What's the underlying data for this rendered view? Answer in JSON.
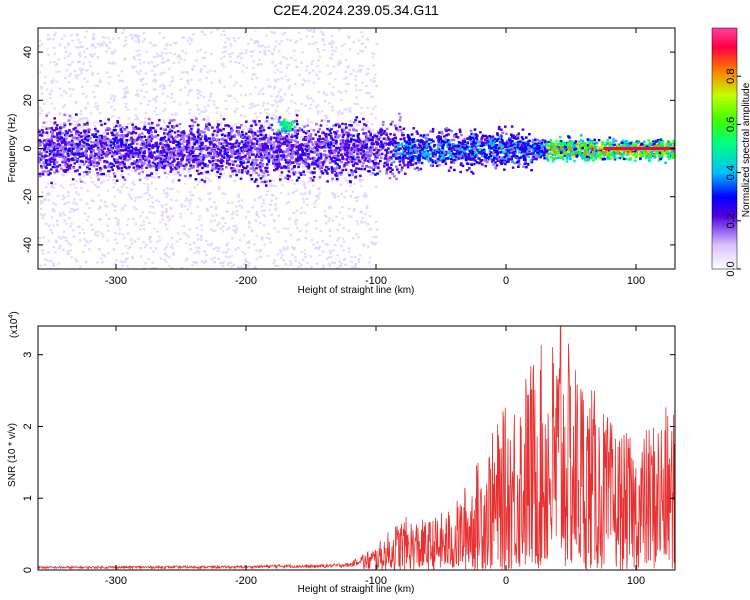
{
  "title": "C2E4.2024.239.05.34.G11",
  "chart_data": [
    {
      "type": "heatmap",
      "xlabel": "Height of straight line (km)",
      "ylabel": "Frequency (Hz)",
      "xlim": [
        -360,
        130
      ],
      "ylim": [
        -50,
        50
      ],
      "x_ticks": [
        "-300",
        "-200",
        "-100",
        "0",
        "100"
      ],
      "y_ticks": [
        "-40",
        "-20",
        "0",
        "20",
        "40"
      ],
      "colorbar": {
        "label": "Normalized spectral amplitude",
        "range": [
          0.0,
          1.0
        ],
        "ticks": [
          "0.0",
          "0.2",
          "0.4",
          "0.6",
          "0.8"
        ],
        "colors": [
          "#ffffff",
          "#e0d0ff",
          "#a070ff",
          "#5000e0",
          "#0000ff",
          "#00c0ff",
          "#00ff80",
          "#40ff00",
          "#c0ff00",
          "#ff8000",
          "#ff0040",
          "#ff40a0"
        ]
      },
      "features": {
        "central_band_hz": 0,
        "scatter_region_km": [
          -360,
          -120
        ],
        "spike_km": -170,
        "spike_hz": 10,
        "high_amplitude_region_km": [
          30,
          130
        ]
      }
    },
    {
      "type": "line",
      "xlabel": "Height of straight line (km)",
      "ylabel": "SNR (10 * v/v)",
      "y_multiplier": "(x10",
      "y_multiplier_exp": "4",
      "y_multiplier_close": ")",
      "xlim": [
        -360,
        130
      ],
      "ylim": [
        0,
        3.4
      ],
      "x_ticks": [
        "-300",
        "-200",
        "-100",
        "0",
        "100"
      ],
      "y_ticks": [
        "0",
        "1",
        "2",
        "3"
      ],
      "series": [
        {
          "color": "#e83030",
          "envelope": {
            "x": [
              -360,
              -200,
              -170,
              -150,
              -120,
              -100,
              -80,
              -60,
              -40,
              -20,
              0,
              20,
              40,
              60,
              80,
              100,
              120,
              130
            ],
            "y": [
              0.05,
              0.06,
              0.08,
              0.07,
              0.1,
              0.35,
              0.75,
              0.7,
              0.9,
              1.6,
              2.3,
              3.0,
              3.4,
              2.8,
              2.1,
              1.8,
              2.3,
              2.2
            ]
          },
          "peak": {
            "x": 42,
            "y": 3.4
          }
        }
      ]
    }
  ]
}
